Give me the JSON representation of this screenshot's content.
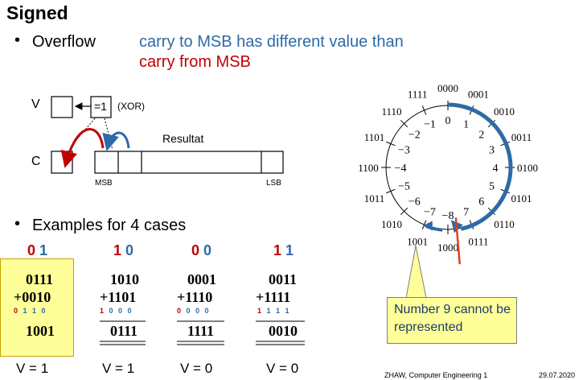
{
  "title": "Signed",
  "overflow": {
    "label": "Overflow",
    "line1": "carry to MSB has different value than",
    "line2": "carry from MSB"
  },
  "diagram": {
    "v_label": "V",
    "c_label": "C",
    "xor_symbol": "=1",
    "xor_label": "(XOR)",
    "resultat_label": "Resultat",
    "msb_label": "MSB",
    "lsb_label": "LSB"
  },
  "examples_heading": "Examples for 4 cases",
  "examples": [
    {
      "carry_in": "0",
      "carry_out": "1",
      "a": "0111",
      "b": "+0010",
      "carries": "0 1 1 0",
      "result": "1001",
      "v": "V = 1"
    },
    {
      "carry_in": "1",
      "carry_out": "0",
      "a": "1010",
      "b": "+1101",
      "carries": "1 0 0 0",
      "result": "0111",
      "v": "V = 1"
    },
    {
      "carry_in": "0",
      "carry_out": "0",
      "a": "0001",
      "b": "+1110",
      "carries": "0 0 0 0",
      "result": "1111",
      "v": "V = 0"
    },
    {
      "carry_in": "1",
      "carry_out": "1",
      "a": "0011",
      "b": "+1111",
      "carries": "1 1 1 1",
      "result": "0010",
      "v": "V = 0"
    }
  ],
  "wheel": {
    "entries": [
      {
        "code": "0000",
        "value": "0"
      },
      {
        "code": "0001",
        "value": "1"
      },
      {
        "code": "0010",
        "value": "2"
      },
      {
        "code": "0011",
        "value": "3"
      },
      {
        "code": "0100",
        "value": "4"
      },
      {
        "code": "0101",
        "value": "5"
      },
      {
        "code": "0110",
        "value": "6"
      },
      {
        "code": "0111",
        "value": "7"
      },
      {
        "code": "1000",
        "value": "−8"
      },
      {
        "code": "1001",
        "value": "−7"
      },
      {
        "code": "1010",
        "value": "−6"
      },
      {
        "code": "1011",
        "value": "−5"
      },
      {
        "code": "1100",
        "value": "−4"
      },
      {
        "code": "1101",
        "value": "−3"
      },
      {
        "code": "1110",
        "value": "−2"
      },
      {
        "code": "1111",
        "value": "−1"
      }
    ],
    "arrow_color": "#2e6aa6",
    "cut_color": "#e0401a"
  },
  "callout": "Number 9 cannot be represented",
  "footer": {
    "source": "ZHAW, Computer Engineering 1",
    "date": "29.07.2020"
  }
}
